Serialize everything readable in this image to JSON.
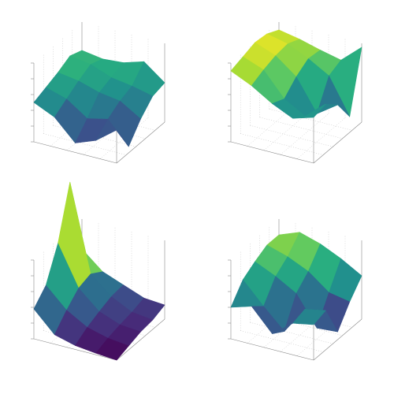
{
  "chart_data": [
    {
      "type": "surface",
      "colormap": "viridis",
      "zlim": [
        0,
        1
      ],
      "z": [
        [
          0.5,
          0.56,
          0.62,
          0.7,
          0.64
        ],
        [
          0.38,
          0.48,
          0.58,
          0.66,
          0.6
        ],
        [
          0.12,
          0.3,
          0.5,
          0.56,
          0.62
        ],
        [
          0.22,
          0.36,
          0.46,
          0.52,
          0.7
        ],
        [
          0.42,
          0.08,
          0.3,
          0.46,
          0.5
        ]
      ]
    },
    {
      "type": "surface",
      "colormap": "viridis",
      "zlim": [
        0,
        1
      ],
      "z": [
        [
          0.9,
          0.95,
          1.0,
          0.98,
          0.9
        ],
        [
          0.78,
          0.85,
          0.9,
          0.92,
          0.85
        ],
        [
          0.62,
          0.55,
          0.7,
          0.8,
          0.78
        ],
        [
          0.5,
          0.4,
          0.3,
          0.65,
          0.72
        ],
        [
          0.58,
          0.62,
          0.48,
          0.2,
          0.95
        ]
      ]
    },
    {
      "type": "surface",
      "colormap": "viridis",
      "zlim": [
        0,
        1
      ],
      "z": [
        [
          0.38,
          0.55,
          0.95,
          1.6,
          0.62
        ],
        [
          0.12,
          0.3,
          0.45,
          0.5,
          0.4
        ],
        [
          0.05,
          0.15,
          0.22,
          0.28,
          0.3
        ],
        [
          0.02,
          0.08,
          0.12,
          0.15,
          0.2
        ],
        [
          0.0,
          0.05,
          0.1,
          0.12,
          0.18
        ]
      ]
    },
    {
      "type": "surface",
      "colormap": "viridis",
      "zlim": [
        0,
        1
      ],
      "z": [
        [
          0.4,
          0.62,
          0.72,
          0.8,
          0.8
        ],
        [
          0.48,
          0.35,
          0.6,
          0.72,
          0.9
        ],
        [
          0.2,
          0.1,
          0.45,
          0.6,
          0.82
        ],
        [
          0.4,
          0.45,
          0.08,
          0.4,
          0.7
        ],
        [
          0.45,
          0.5,
          0.1,
          0.35,
          0.55
        ]
      ]
    }
  ]
}
